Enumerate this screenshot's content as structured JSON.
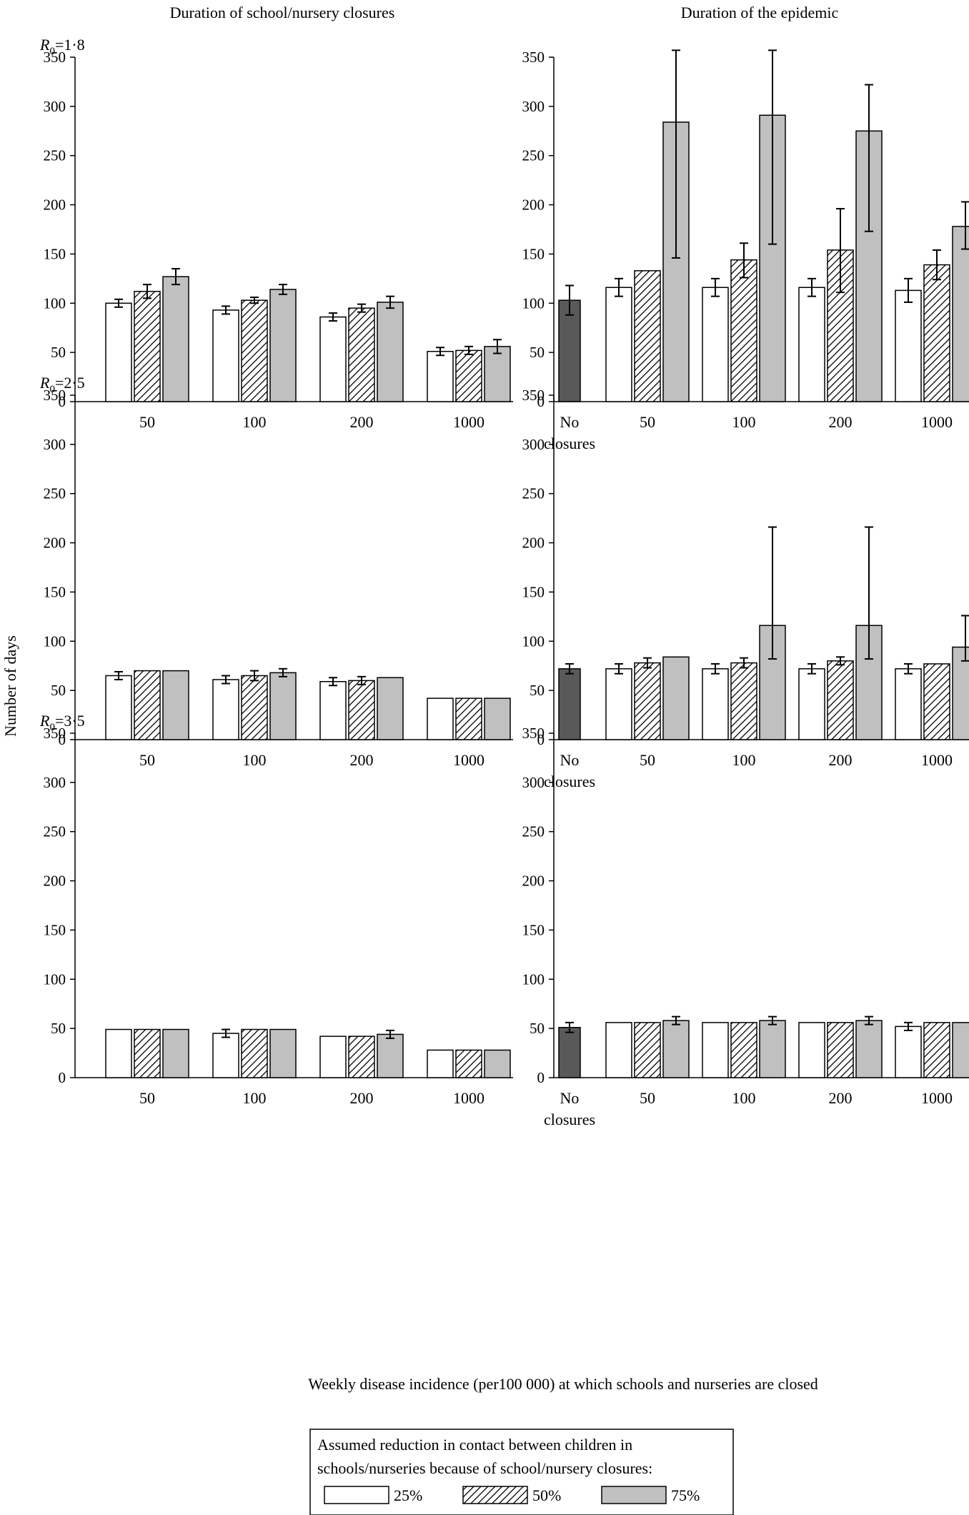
{
  "titles": {
    "left_column": "Duration of school/nursery closures",
    "right_column": "Duration of the epidemic",
    "y_axis": "Number of days",
    "x_axis": "Weekly disease incidence (per100 000) at which schools and nurseries are closed"
  },
  "legend": {
    "caption_line1": "Assumed reduction in contact between children in",
    "caption_line2": "schools/nurseries because of school/nursery closures:",
    "items": [
      {
        "label": "25%",
        "pattern": "white"
      },
      {
        "label": "50%",
        "pattern": "hatch"
      },
      {
        "label": "75%",
        "pattern": "grey"
      }
    ]
  },
  "rows": [
    {
      "r_symbol": "R",
      "r_sub": "0",
      "r_value": "=1·8"
    },
    {
      "r_symbol": "R",
      "r_sub": "0",
      "r_value": "=2·5"
    },
    {
      "r_symbol": "R",
      "r_sub": "0",
      "r_value": "=3·5"
    }
  ],
  "colors": {
    "white": "#ffffff",
    "grey": "#c0c0c0",
    "dark": "#595959",
    "stroke": "#000000"
  },
  "chart_data": [
    {
      "type": "bar",
      "panel": "closures",
      "row": 0,
      "ylim": [
        0,
        350
      ],
      "yticks": [
        0,
        50,
        100,
        150,
        200,
        250,
        300,
        350
      ],
      "categories": [
        "50",
        "100",
        "200",
        "1000"
      ],
      "series": [
        {
          "name": "25%",
          "values": [
            100,
            93,
            86,
            51
          ],
          "err": [
            4,
            4,
            4,
            4
          ]
        },
        {
          "name": "50%",
          "values": [
            112,
            103,
            95,
            52
          ],
          "err": [
            7,
            3,
            4,
            4
          ]
        },
        {
          "name": "75%",
          "values": [
            127,
            114,
            101,
            56
          ],
          "err": [
            8,
            5,
            6,
            7
          ]
        }
      ]
    },
    {
      "type": "bar",
      "panel": "epidemic",
      "row": 0,
      "ylim": [
        0,
        350
      ],
      "yticks": [
        0,
        50,
        100,
        150,
        200,
        250,
        300,
        350
      ],
      "baseline": {
        "label1": "No",
        "label2": "closures",
        "value": 103,
        "err": [
          88,
          118
        ]
      },
      "categories": [
        "50",
        "100",
        "200",
        "1000"
      ],
      "series": [
        {
          "name": "25%",
          "values": [
            116,
            116,
            116,
            113
          ],
          "err": [
            [
              107,
              125
            ],
            [
              107,
              125
            ],
            [
              107,
              125
            ],
            [
              101,
              125
            ]
          ]
        },
        {
          "name": "50%",
          "values": [
            133,
            144,
            154,
            139
          ],
          "err": [
            null,
            [
              126,
              161
            ],
            [
              111,
              196
            ],
            [
              124,
              154
            ]
          ]
        },
        {
          "name": "75%",
          "values": [
            284,
            291,
            275,
            178
          ],
          "err": [
            [
              146,
              357
            ],
            [
              160,
              357
            ],
            [
              173,
              322
            ],
            [
              155,
              203
            ]
          ]
        }
      ]
    },
    {
      "type": "bar",
      "panel": "closures",
      "row": 1,
      "ylim": [
        0,
        350
      ],
      "yticks": [
        0,
        50,
        100,
        150,
        200,
        250,
        300,
        350
      ],
      "categories": [
        "50",
        "100",
        "200",
        "1000"
      ],
      "series": [
        {
          "name": "25%",
          "values": [
            65,
            61,
            59,
            42
          ],
          "err": [
            4,
            4,
            4,
            null
          ]
        },
        {
          "name": "50%",
          "values": [
            70,
            65,
            60,
            42
          ],
          "err": [
            null,
            5,
            4,
            null
          ]
        },
        {
          "name": "75%",
          "values": [
            70,
            68,
            63,
            42
          ],
          "err": [
            null,
            4,
            null,
            null
          ]
        }
      ]
    },
    {
      "type": "bar",
      "panel": "epidemic",
      "row": 1,
      "ylim": [
        0,
        350
      ],
      "yticks": [
        0,
        50,
        100,
        150,
        200,
        250,
        300,
        350
      ],
      "baseline": {
        "label1": "No",
        "label2": "closures",
        "value": 72,
        "err": [
          67,
          77
        ]
      },
      "categories": [
        "50",
        "100",
        "200",
        "1000"
      ],
      "series": [
        {
          "name": "25%",
          "values": [
            72,
            72,
            72,
            72
          ],
          "err": [
            [
              67,
              77
            ],
            [
              67,
              77
            ],
            [
              67,
              77
            ],
            [
              67,
              77
            ]
          ]
        },
        {
          "name": "50%",
          "values": [
            78,
            78,
            80,
            77
          ],
          "err": [
            [
              73,
              83
            ],
            [
              73,
              83
            ],
            [
              76,
              84
            ],
            null
          ]
        },
        {
          "name": "75%",
          "values": [
            84,
            116,
            116,
            94
          ],
          "err": [
            null,
            [
              82,
              216
            ],
            [
              82,
              216
            ],
            [
              80,
              126
            ]
          ]
        }
      ]
    },
    {
      "type": "bar",
      "panel": "closures",
      "row": 2,
      "ylim": [
        0,
        350
      ],
      "yticks": [
        0,
        50,
        100,
        150,
        200,
        250,
        300,
        350
      ],
      "categories": [
        "50",
        "100",
        "200",
        "1000"
      ],
      "series": [
        {
          "name": "25%",
          "values": [
            49,
            45,
            42,
            28
          ],
          "err": [
            null,
            4,
            null,
            null
          ]
        },
        {
          "name": "50%",
          "values": [
            49,
            49,
            42,
            28
          ],
          "err": [
            null,
            null,
            null,
            null
          ]
        },
        {
          "name": "75%",
          "values": [
            49,
            49,
            44,
            28
          ],
          "err": [
            null,
            null,
            4,
            null
          ]
        }
      ]
    },
    {
      "type": "bar",
      "panel": "epidemic",
      "row": 2,
      "ylim": [
        0,
        350
      ],
      "yticks": [
        0,
        50,
        100,
        150,
        200,
        250,
        300,
        350
      ],
      "baseline": {
        "label1": "No",
        "label2": "closures",
        "value": 51,
        "err": [
          46,
          56
        ]
      },
      "categories": [
        "50",
        "100",
        "200",
        "1000"
      ],
      "series": [
        {
          "name": "25%",
          "values": [
            56,
            56,
            56,
            52
          ],
          "err": [
            null,
            null,
            null,
            [
              48,
              56
            ]
          ]
        },
        {
          "name": "50%",
          "values": [
            56,
            56,
            56,
            56
          ],
          "err": [
            null,
            null,
            null,
            null
          ]
        },
        {
          "name": "75%",
          "values": [
            58,
            58,
            58,
            56
          ],
          "err": [
            [
              54,
              62
            ],
            [
              54,
              62
            ],
            [
              54,
              62
            ],
            null
          ]
        }
      ]
    }
  ]
}
